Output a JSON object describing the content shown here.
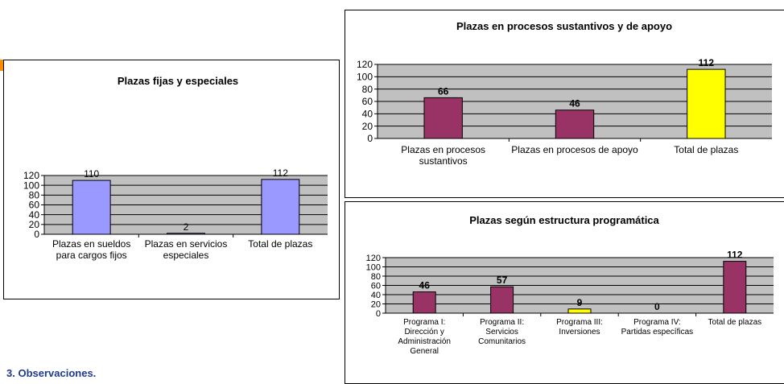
{
  "section": {
    "observaciones": "3. Observaciones."
  },
  "colors": {
    "plot_bg": "#c0c0c0",
    "grid": "#000000",
    "periwinkle": "#9999ff",
    "maroon": "#993366",
    "yellow": "#ffff00"
  },
  "chart_data": [
    {
      "id": "fijas",
      "type": "bar",
      "title": "Plazas fijas y especiales",
      "categories": [
        "Plazas en sueldos\npara cargos fijos",
        "Plazas en servicios\nespeciales",
        "Total de plazas"
      ],
      "values": [
        110,
        2,
        112
      ],
      "value_labels": [
        "110",
        "2",
        "112"
      ],
      "bar_colors": [
        "#9999ff",
        "#9999ff",
        "#9999ff"
      ],
      "ylim": [
        0,
        120
      ],
      "yticks": [
        0,
        20,
        40,
        60,
        80,
        100,
        120
      ],
      "grid": true,
      "legend": "none"
    },
    {
      "id": "procesos",
      "type": "bar",
      "title": "Plazas en procesos sustantivos y de apoyo",
      "categories": [
        "Plazas en procesos\nsustantivos",
        "Plazas en procesos de apoyo",
        "Total de plazas"
      ],
      "values": [
        66,
        46,
        112
      ],
      "value_labels": [
        "66",
        "46",
        "112"
      ],
      "bar_colors": [
        "#993366",
        "#993366",
        "#ffff00"
      ],
      "ylim": [
        0,
        120
      ],
      "yticks": [
        0,
        20,
        40,
        60,
        80,
        100,
        120
      ],
      "grid": true,
      "legend": "none"
    },
    {
      "id": "estructura",
      "type": "bar",
      "title": "Plazas según estructura programática",
      "categories": [
        "Programa I:\nDirección y\nAdministración\nGeneral",
        "Programa II:\nServicios\nComunitarios",
        "Programa III:\nInversiones",
        "Programa IV:\nPartidas específicas",
        "Total de plazas"
      ],
      "values": [
        46,
        57,
        9,
        0,
        112
      ],
      "value_labels": [
        "46",
        "57",
        "9",
        "0",
        "112"
      ],
      "bar_colors": [
        "#993366",
        "#993366",
        "#ffff00",
        "#993366",
        "#993366"
      ],
      "ylim": [
        0,
        120
      ],
      "yticks": [
        0,
        20,
        40,
        60,
        80,
        100,
        120
      ],
      "grid": true,
      "legend": "none"
    }
  ]
}
